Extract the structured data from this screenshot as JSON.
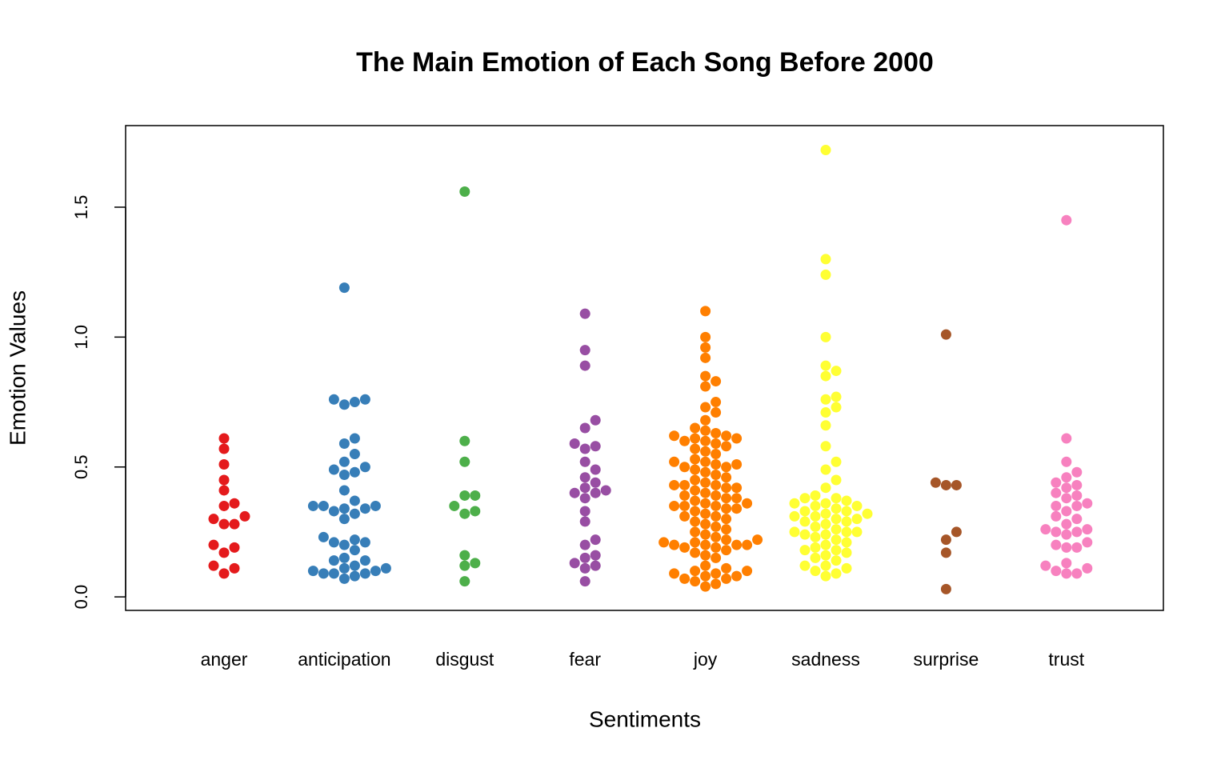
{
  "chart_data": {
    "type": "swarm",
    "title": "The Main Emotion of Each Song Before 2000",
    "x_label": "Sentiments",
    "y_label": "Emotion Values",
    "categories": [
      "anger",
      "anticipation",
      "disgust",
      "fear",
      "joy",
      "sadness",
      "surprise",
      "trust"
    ],
    "colors": [
      "#e41a1c",
      "#377eb8",
      "#4daf4a",
      "#984ea3",
      "#ff7f00",
      "#ffff33",
      "#a65628",
      "#f781bf"
    ],
    "values": [
      [
        0.61,
        0.57,
        0.51,
        0.45,
        0.41,
        0.35,
        0.36,
        0.31,
        0.3,
        0.28,
        0.28,
        0.2,
        0.19,
        0.17,
        0.12,
        0.11,
        0.09
      ],
      [
        1.19,
        0.76,
        0.76,
        0.75,
        0.74,
        0.61,
        0.59,
        0.55,
        0.52,
        0.5,
        0.49,
        0.48,
        0.47,
        0.41,
        0.37,
        0.35,
        0.35,
        0.35,
        0.34,
        0.34,
        0.33,
        0.32,
        0.3,
        0.23,
        0.22,
        0.21,
        0.21,
        0.2,
        0.18,
        0.15,
        0.14,
        0.14,
        0.12,
        0.11,
        0.11,
        0.1,
        0.1,
        0.09,
        0.09,
        0.09,
        0.08,
        0.07
      ],
      [
        1.56,
        0.6,
        0.52,
        0.39,
        0.39,
        0.35,
        0.33,
        0.32,
        0.16,
        0.13,
        0.12,
        0.06
      ],
      [
        1.09,
        0.95,
        0.89,
        0.68,
        0.65,
        0.59,
        0.58,
        0.57,
        0.52,
        0.49,
        0.46,
        0.44,
        0.42,
        0.41,
        0.4,
        0.4,
        0.38,
        0.33,
        0.29,
        0.22,
        0.2,
        0.16,
        0.15,
        0.13,
        0.12,
        0.11,
        0.06
      ],
      [
        1.1,
        1.0,
        0.96,
        0.92,
        0.85,
        0.83,
        0.81,
        0.75,
        0.73,
        0.71,
        0.68,
        0.65,
        0.64,
        0.63,
        0.62,
        0.62,
        0.61,
        0.61,
        0.6,
        0.6,
        0.59,
        0.58,
        0.57,
        0.56,
        0.55,
        0.53,
        0.52,
        0.52,
        0.51,
        0.51,
        0.5,
        0.5,
        0.49,
        0.48,
        0.47,
        0.46,
        0.45,
        0.44,
        0.43,
        0.43,
        0.43,
        0.42,
        0.42,
        0.41,
        0.4,
        0.39,
        0.39,
        0.38,
        0.38,
        0.37,
        0.36,
        0.36,
        0.35,
        0.35,
        0.35,
        0.34,
        0.34,
        0.33,
        0.32,
        0.31,
        0.31,
        0.3,
        0.29,
        0.28,
        0.27,
        0.26,
        0.25,
        0.24,
        0.23,
        0.22,
        0.22,
        0.21,
        0.21,
        0.2,
        0.2,
        0.2,
        0.2,
        0.19,
        0.19,
        0.18,
        0.17,
        0.16,
        0.15,
        0.12,
        0.11,
        0.1,
        0.1,
        0.09,
        0.09,
        0.08,
        0.08,
        0.07,
        0.07,
        0.06,
        0.05,
        0.04
      ],
      [
        1.72,
        1.3,
        1.24,
        1.0,
        0.89,
        0.87,
        0.85,
        0.77,
        0.76,
        0.73,
        0.71,
        0.66,
        0.58,
        0.52,
        0.49,
        0.45,
        0.42,
        0.39,
        0.38,
        0.38,
        0.37,
        0.36,
        0.36,
        0.35,
        0.35,
        0.34,
        0.33,
        0.33,
        0.32,
        0.32,
        0.31,
        0.31,
        0.3,
        0.3,
        0.29,
        0.29,
        0.28,
        0.27,
        0.26,
        0.25,
        0.25,
        0.25,
        0.24,
        0.24,
        0.23,
        0.22,
        0.21,
        0.2,
        0.19,
        0.18,
        0.18,
        0.17,
        0.16,
        0.15,
        0.14,
        0.12,
        0.12,
        0.11,
        0.1,
        0.09,
        0.08
      ],
      [
        1.01,
        0.44,
        0.43,
        0.43,
        0.25,
        0.22,
        0.17,
        0.03
      ],
      [
        1.45,
        0.61,
        0.52,
        0.48,
        0.46,
        0.44,
        0.43,
        0.42,
        0.4,
        0.39,
        0.38,
        0.36,
        0.35,
        0.35,
        0.33,
        0.31,
        0.3,
        0.28,
        0.26,
        0.26,
        0.25,
        0.25,
        0.24,
        0.21,
        0.2,
        0.19,
        0.19,
        0.13,
        0.12,
        0.11,
        0.1,
        0.09,
        0.09
      ]
    ],
    "ylim": [
      -0.052,
      1.814
    ],
    "yticks": [
      {
        "value": 0,
        "label": "0.0"
      },
      0.5,
      {
        "value": 1,
        "label": "1.0"
      },
      1.5
    ]
  }
}
